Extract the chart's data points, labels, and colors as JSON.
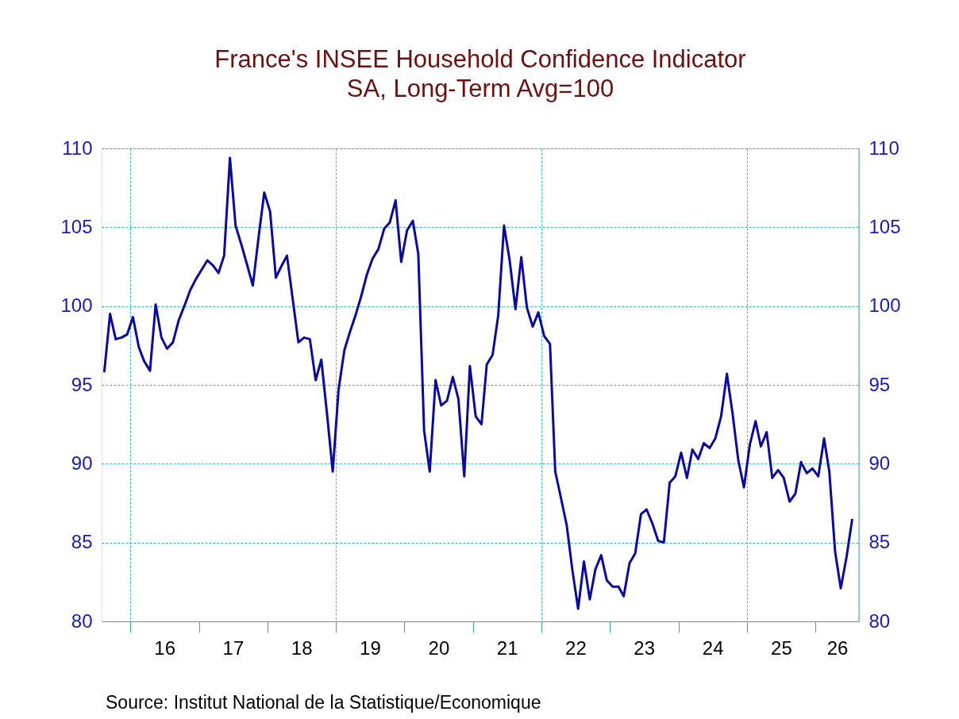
{
  "chart_data": {
    "type": "line",
    "title": "France's INSEE Household Confidence Indicator",
    "subtitle": "SA, Long-Term Avg=100",
    "annotations": [
      "Source:  Institut National de la Statistique/Economique"
    ],
    "x": [
      "2015-08-15",
      "2015-09-15",
      "2015-10-15",
      "2015-11-15",
      "2015-12-15",
      "2016-01-15",
      "2016-02-15",
      "2016-03-15",
      "2016-04-15",
      "2016-05-15",
      "2016-06-15",
      "2016-07-15",
      "2016-08-15",
      "2016-09-15",
      "2016-10-15",
      "2016-11-15",
      "2016-12-15",
      "2017-01-15",
      "2017-02-15",
      "2017-03-15",
      "2017-04-15",
      "2017-05-15",
      "2017-06-15",
      "2017-07-15",
      "2017-08-15",
      "2017-09-15",
      "2017-10-15",
      "2017-11-15",
      "2017-12-15",
      "2018-01-15",
      "2018-02-15",
      "2018-03-15",
      "2018-04-15",
      "2018-05-15",
      "2018-06-15",
      "2018-07-15",
      "2018-08-15",
      "2018-09-15",
      "2018-10-15",
      "2018-11-15",
      "2018-12-15",
      "2019-01-15",
      "2019-02-15",
      "2019-03-15",
      "2019-04-15",
      "2019-05-15",
      "2019-06-15",
      "2019-07-15",
      "2019-08-15",
      "2019-09-15",
      "2019-10-15",
      "2019-11-15",
      "2019-12-15",
      "2020-01-15",
      "2020-02-15",
      "2020-03-15",
      "2020-04-15",
      "2020-05-15",
      "2020-06-15",
      "2020-07-15",
      "2020-08-15",
      "2020-09-15",
      "2020-10-15",
      "2020-11-15",
      "2020-12-15",
      "2021-01-15",
      "2021-02-15",
      "2021-03-15",
      "2021-04-15",
      "2021-05-15",
      "2021-06-15",
      "2021-07-15",
      "2021-08-15",
      "2021-09-15",
      "2021-10-15",
      "2021-11-15",
      "2021-12-15",
      "2022-01-15",
      "2022-02-15",
      "2022-03-15",
      "2022-04-15",
      "2022-05-15",
      "2022-06-15",
      "2022-07-15",
      "2022-08-15",
      "2022-09-15",
      "2022-10-15",
      "2022-11-15",
      "2022-12-15",
      "2023-01-15",
      "2023-02-15",
      "2023-03-15",
      "2023-04-15",
      "2023-05-15",
      "2023-06-15",
      "2023-07-15",
      "2023-08-15",
      "2023-09-15",
      "2023-10-15",
      "2023-11-15",
      "2023-12-15",
      "2024-01-15",
      "2024-02-15",
      "2024-03-15",
      "2024-04-15",
      "2024-05-15",
      "2024-06-15",
      "2024-07-15",
      "2024-08-15",
      "2024-09-15",
      "2024-10-15",
      "2024-11-15",
      "2024-12-15",
      "2025-01-15",
      "2025-02-15",
      "2025-03-15",
      "2025-04-15",
      "2025-05-15",
      "2025-06-15",
      "2025-07-15",
      "2025-08-15",
      "2025-09-15",
      "2025-10-15",
      "2025-11-15",
      "2025-12-15",
      "2026-01-15",
      "2026-02-15",
      "2026-03-15",
      "2026-04-15",
      "2026-05-15",
      "2026-06-15",
      "2026-07-15"
    ],
    "series": [
      {
        "color": "#0a0a9e",
        "values": [
          95.8,
          99.5,
          97.9,
          98.0,
          98.2,
          99.3,
          97.4,
          96.5,
          95.9,
          100.1,
          98.0,
          97.3,
          97.7,
          99.1,
          100.0,
          101.0,
          101.7,
          102.3,
          102.9,
          102.6,
          102.1,
          103.2,
          109.4,
          105.1,
          103.9,
          102.6,
          101.3,
          104.4,
          107.2,
          106.0,
          101.8,
          102.5,
          103.2,
          100.5,
          97.7,
          98.0,
          97.9,
          95.3,
          96.6,
          93.1,
          89.5,
          94.7,
          97.2,
          98.3,
          99.4,
          100.6,
          102.0,
          103.0,
          103.6,
          104.9,
          105.3,
          106.7,
          102.8,
          104.8,
          105.4,
          103.3,
          92.1,
          89.5,
          95.3,
          93.7,
          94.0,
          95.5,
          94.1,
          89.2,
          96.2,
          93.0,
          92.5,
          96.3,
          96.9,
          99.4,
          105.1,
          102.9,
          99.8,
          103.1,
          99.9,
          98.7,
          99.6,
          98.1,
          97.6,
          89.5,
          87.8,
          86.1,
          83.2,
          80.8,
          83.8,
          81.4,
          83.3,
          84.2,
          82.6,
          82.2,
          82.2,
          81.6,
          83.7,
          84.3,
          86.8,
          87.1,
          86.2,
          85.1,
          85.0,
          88.8,
          89.2,
          90.7,
          89.1,
          90.9,
          90.3,
          91.3,
          91.0,
          91.6,
          93.0,
          95.7,
          93.2,
          90.2,
          88.5,
          91.2,
          92.7,
          91.1,
          92.0,
          89.1,
          89.6,
          89.1,
          87.6,
          88.1,
          90.1,
          89.4,
          89.7,
          89.2,
          91.6,
          89.5,
          84.4,
          82.1,
          84.1,
          86.5
        ]
      }
    ],
    "xlim": [
      "2015-08-01",
      "2026-08-20"
    ],
    "xticks": [
      {
        "value": "2016-01-01",
        "label": null
      },
      {
        "value": "2017-01-01",
        "label": null
      },
      {
        "value": "2018-01-01",
        "label": null
      },
      {
        "value": "2019-01-01",
        "label": null
      },
      {
        "value": "2020-01-01",
        "label": null
      },
      {
        "value": "2021-01-01",
        "label": null
      },
      {
        "value": "2022-01-01",
        "label": null
      },
      {
        "value": "2023-01-01",
        "label": null
      },
      {
        "value": "2024-01-01",
        "label": null
      },
      {
        "value": "2025-01-01",
        "label": null
      },
      {
        "value": "2026-01-01",
        "label": null
      },
      {
        "value": "2016-07-01",
        "label": "16"
      },
      {
        "value": "2017-07-01",
        "label": "17"
      },
      {
        "value": "2018-07-01",
        "label": "18"
      },
      {
        "value": "2019-07-01",
        "label": "19"
      },
      {
        "value": "2020-07-01",
        "label": "20"
      },
      {
        "value": "2021-07-01",
        "label": "21"
      },
      {
        "value": "2022-07-01",
        "label": "22"
      },
      {
        "value": "2023-07-01",
        "label": "23"
      },
      {
        "value": "2024-07-01",
        "label": "24"
      },
      {
        "value": "2025-07-01",
        "label": "25"
      },
      {
        "value": "2026-04-26",
        "label": "26"
      }
    ],
    "ylim": [
      80,
      110
    ],
    "yticks": [
      80,
      85,
      90,
      95,
      100,
      105,
      110
    ],
    "y2lim": [
      80,
      110
    ],
    "y2ticks": [
      80,
      85,
      90,
      95,
      100,
      105,
      110
    ],
    "grid": true,
    "legend": false,
    "marker": "none",
    "line_style": "solid"
  }
}
